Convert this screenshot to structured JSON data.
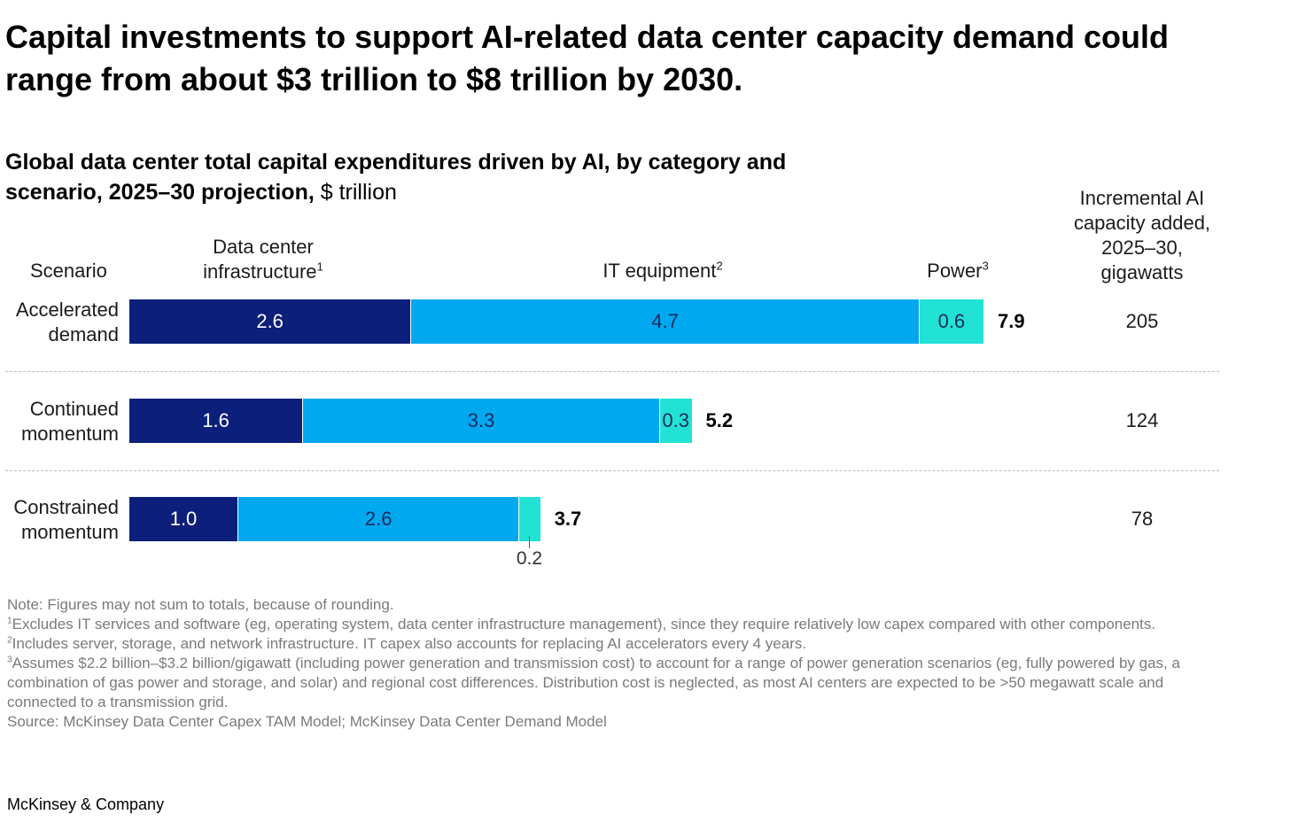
{
  "headline": "Capital investments to support AI-related data center capacity demand could range from about $3 trillion to $8 trillion by 2030.",
  "chart_title": {
    "main": "Global data center total capital expenditures driven by AI, by category and scenario, 2025–30 projection,",
    "unit": " $ trillion"
  },
  "columns": {
    "scenario": "Scenario",
    "infrastructure": "Data center infrastructure",
    "infrastructure_note": "1",
    "it_equipment": "IT equipment",
    "it_equipment_note": "2",
    "power": "Power",
    "power_note": "3",
    "capacity": "Incremental AI capacity added, 2025–30, gigawatts"
  },
  "chart_data": {
    "type": "bar",
    "orientation": "horizontal-stacked",
    "unit": "$ trillion",
    "categories": [
      "Accelerated demand",
      "Continued momentum",
      "Constrained momentum"
    ],
    "series": [
      {
        "name": "Data center infrastructure",
        "values": [
          2.6,
          1.6,
          1.0
        ],
        "color": "#0c1f7a"
      },
      {
        "name": "IT equipment",
        "values": [
          4.7,
          3.3,
          2.6
        ],
        "color": "#00a8f0"
      },
      {
        "name": "Power",
        "values": [
          0.6,
          0.3,
          0.2
        ],
        "color": "#22e2d6"
      }
    ],
    "totals": [
      7.9,
      5.2,
      3.7
    ],
    "incremental_capacity_gw": [
      205,
      124,
      78
    ],
    "data_labels": [
      [
        "2.6",
        "4.7",
        "0.6"
      ],
      [
        "1.6",
        "3.3",
        "0.3"
      ],
      [
        "1.0",
        "2.6",
        "0.2"
      ]
    ],
    "total_labels": [
      "7.9",
      "5.2",
      "3.7"
    ],
    "capacity_labels": [
      "205",
      "124",
      "78"
    ],
    "xlim": [
      0,
      7.9
    ],
    "legend": "column headers",
    "grid": false
  },
  "notes": {
    "note": "Note: Figures may not sum to totals, because of rounding.",
    "fn1": "Excludes IT services and software (eg, operating system, data center infrastructure management), since they require relatively low capex compared with other components.",
    "fn2": "Includes server, storage, and network infrastructure. IT capex also accounts for replacing AI accelerators every 4 years.",
    "fn3": "Assumes $2.2 billion–$3.2 billion/gigawatt (including power generation and transmission cost) to account for a range of power generation scenarios (eg, fully powered by gas, a combination of gas power and storage, and solar) and regional cost differences. Distribution cost is neglected, as most AI centers are expected to be >50 megawatt scale and connected to a transmission grid.",
    "source": "Source: McKinsey Data Center Capex TAM Model; McKinsey Data Center Demand Model"
  },
  "brand": "McKinsey & Company"
}
